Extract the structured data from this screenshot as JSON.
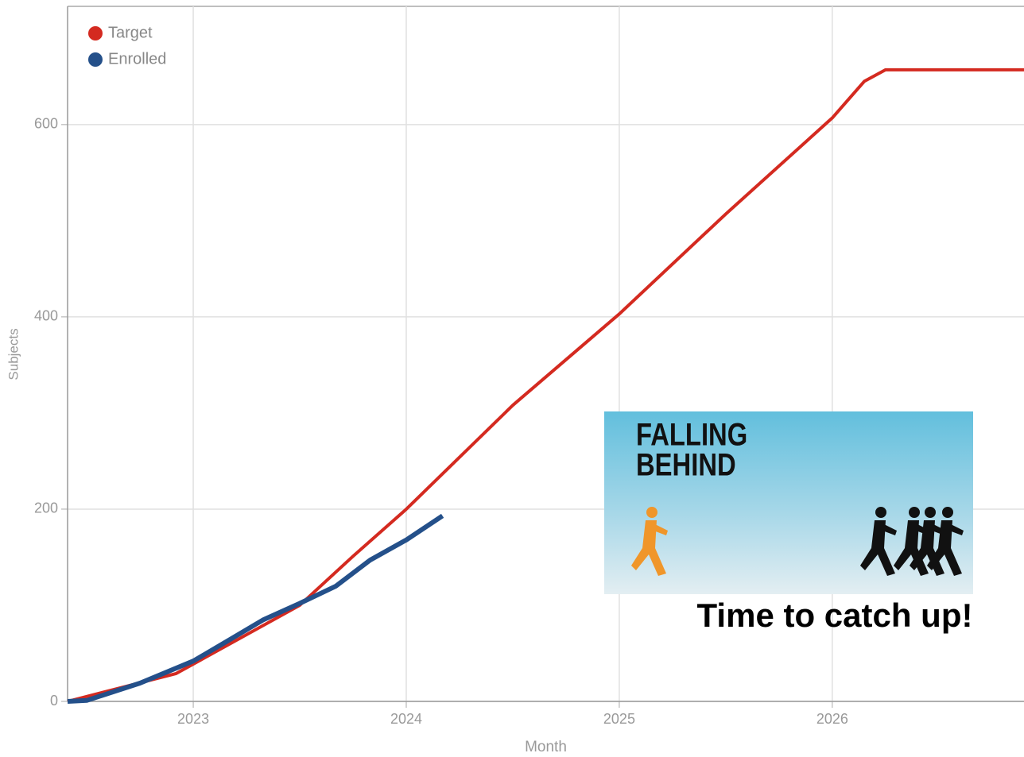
{
  "chart_data": {
    "type": "line",
    "x_label": "Month",
    "y_label": "Subjects",
    "xlim": [
      2022.41,
      2026.9
    ],
    "xticks": [
      2023,
      2024,
      2025,
      2026
    ],
    "ylim": [
      0,
      723
    ],
    "yticks": [
      0,
      200,
      400,
      600
    ],
    "grid": true,
    "legend": "top-left",
    "series": [
      {
        "name": "Target",
        "color": "#d42a20",
        "x": [
          2022.41,
          2022.92,
          2023.5,
          2023.75,
          2024.0,
          2024.5,
          2025.0,
          2025.5,
          2026.0,
          2026.15,
          2026.25,
          2026.9
        ],
        "values": [
          0,
          29,
          100,
          151,
          200,
          308,
          403,
          507,
          607,
          645,
          657,
          657
        ]
      },
      {
        "name": "Enrolled",
        "color": "#24508a",
        "x": [
          2022.41,
          2022.5,
          2022.75,
          2023.0,
          2023.17,
          2023.33,
          2023.5,
          2023.67,
          2023.83,
          2024.0,
          2024.17
        ],
        "values": [
          0,
          1,
          19,
          42,
          64,
          85,
          102,
          120,
          147,
          168,
          193
        ]
      }
    ],
    "annotations": [
      "FALLING",
      "BEHIND",
      "Time to catch up!"
    ]
  }
}
